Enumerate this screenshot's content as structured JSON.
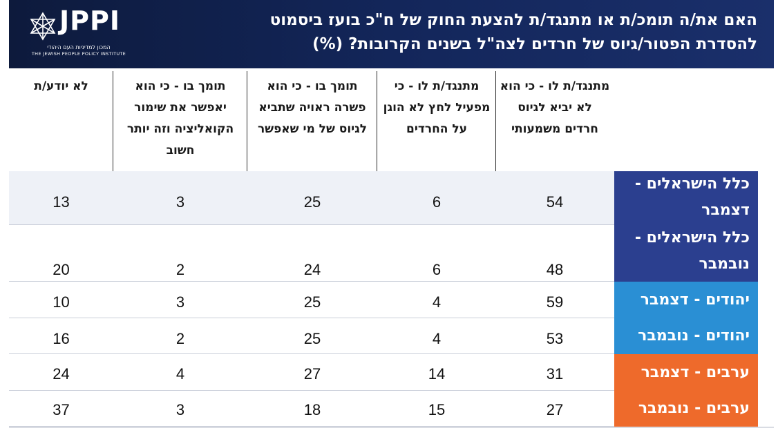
{
  "header": {
    "title_line1": "האם את/ה תומכ/ת או מתנגד/ת להצעת החוק של ח\"כ בועז ביסמוט",
    "title_line2": "להסדרת הפטור/גיוס של חרדים לצה\"ל בשנים הקרובות? (%)",
    "logo_text": "JPPI",
    "logo_sub_he": "המכון למדיניות העם היהודי",
    "logo_sub_en": "THE JEWISH PEOPLE POLICY INSTITUTE",
    "bg_color": "#13265a"
  },
  "chart_data": {
    "type": "table",
    "title": "האם את/ה תומכ/ת או מתנגד/ת להצעת החוק של ח\"כ בועז ביסמוט להסדרת הפטור/גיוס של חרדים לצה\"ל בשנים הקרובות? (%)",
    "columns": [
      "מתנגד/ת לו - כי הוא לא יביא לגיוס חרדים משמעותי",
      "מתנגד/ת לו - כי מפעיל לחץ לא הוגן על החרדים",
      "תומך בו - כי הוא פשרה ראויה שתביא לגיוס של מי שאפשר",
      "תומך בו - כי הוא יאפשר את שימור הקואליציה וזה יותר חשוב",
      "לא יודע/ת"
    ],
    "rows": [
      {
        "label": "כלל הישראלים - דצמבר",
        "color": "#2b3f8f",
        "values": [
          54,
          6,
          25,
          3,
          13
        ]
      },
      {
        "label": "כלל הישראלים - נובמבר",
        "color": "#2b3f8f",
        "values": [
          48,
          6,
          24,
          2,
          20
        ]
      },
      {
        "label": "יהודים - דצמבר",
        "color": "#2a8fd4",
        "values": [
          59,
          4,
          25,
          3,
          10
        ]
      },
      {
        "label": "יהודים - נובמבר",
        "color": "#2a8fd4",
        "values": [
          53,
          4,
          25,
          2,
          16
        ]
      },
      {
        "label": "ערבים - דצמבר",
        "color": "#ee6a2b",
        "values": [
          31,
          14,
          27,
          4,
          24
        ]
      },
      {
        "label": "ערבים - נובמבר",
        "color": "#ee6a2b",
        "values": [
          27,
          15,
          18,
          3,
          37
        ]
      }
    ]
  }
}
